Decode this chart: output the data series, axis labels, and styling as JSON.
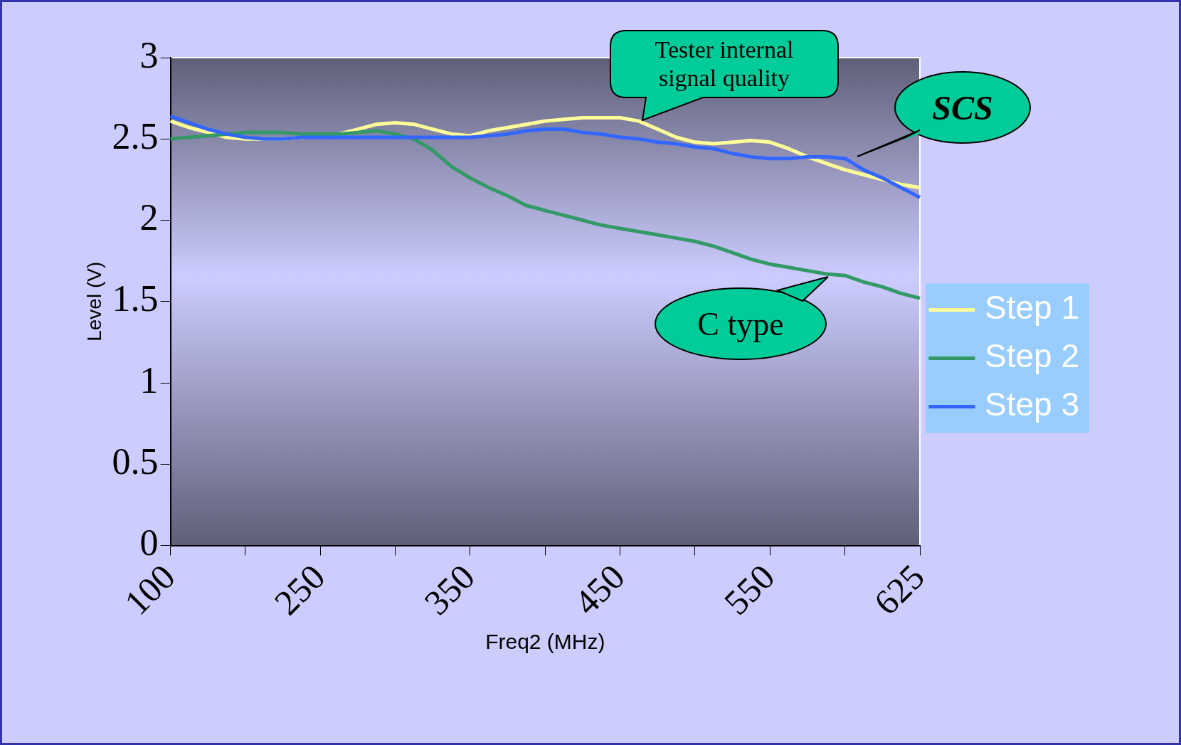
{
  "chart_data": {
    "type": "line",
    "xlabel": "Freq2 (MHz)",
    "ylabel": "Level (V)",
    "categories": [
      "100",
      null,
      null,
      null,
      null,
      null,
      null,
      null,
      "250",
      null,
      null,
      null,
      null,
      null,
      null,
      null,
      "350",
      null,
      null,
      null,
      null,
      null,
      null,
      null,
      "450",
      null,
      null,
      null,
      null,
      null,
      null,
      null,
      "550",
      null,
      null,
      null,
      null,
      null,
      null,
      null,
      "625"
    ],
    "series": [
      {
        "name": "Step 1",
        "color": "#ffff99",
        "values": [
          2.61,
          2.57,
          2.54,
          2.51,
          2.5,
          2.5,
          2.5,
          2.51,
          2.52,
          2.53,
          2.56,
          2.59,
          2.6,
          2.59,
          2.56,
          2.53,
          2.52,
          2.55,
          2.57,
          2.59,
          2.61,
          2.62,
          2.63,
          2.63,
          2.63,
          2.61,
          2.56,
          2.51,
          2.48,
          2.47,
          2.48,
          2.49,
          2.48,
          2.44,
          2.39,
          2.35,
          2.31,
          2.28,
          2.25,
          2.22,
          2.2
        ]
      },
      {
        "name": "Step 2",
        "color": "#339966",
        "values": [
          2.5,
          2.51,
          2.52,
          2.53,
          2.54,
          2.54,
          2.54,
          2.53,
          2.53,
          2.53,
          2.54,
          2.55,
          2.53,
          2.5,
          2.43,
          2.33,
          2.26,
          2.2,
          2.15,
          2.09,
          2.06,
          2.03,
          2,
          1.97,
          1.95,
          1.93,
          1.91,
          1.89,
          1.87,
          1.84,
          1.8,
          1.76,
          1.73,
          1.71,
          1.69,
          1.67,
          1.66,
          1.62,
          1.59,
          1.55,
          1.52
        ]
      },
      {
        "name": "Step 3",
        "color": "#3366ff",
        "values": [
          2.64,
          2.6,
          2.56,
          2.53,
          2.51,
          2.5,
          2.5,
          2.51,
          2.51,
          2.51,
          2.51,
          2.51,
          2.51,
          2.51,
          2.51,
          2.51,
          2.51,
          2.52,
          2.53,
          2.55,
          2.56,
          2.56,
          2.54,
          2.53,
          2.51,
          2.5,
          2.48,
          2.47,
          2.45,
          2.44,
          2.41,
          2.39,
          2.38,
          2.38,
          2.39,
          2.39,
          2.38,
          2.31,
          2.26,
          2.2,
          2.14
        ]
      }
    ],
    "ylim": [
      0,
      3
    ],
    "yticks": [
      0,
      0.5,
      1,
      1.5,
      2,
      2.5,
      3
    ],
    "grid": false,
    "legend": "right",
    "marker": "none",
    "line_style": "solid",
    "annotations": [
      "Tester internal signal quality",
      "SCS",
      "C type"
    ]
  }
}
